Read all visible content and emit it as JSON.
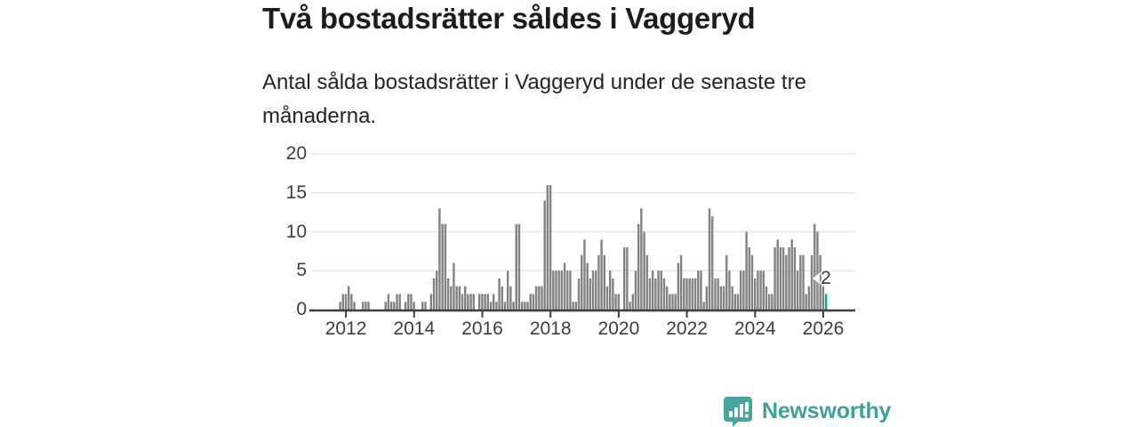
{
  "header": {
    "title": "Två bostadsrätter såldes i Vaggeryd",
    "subtitle": "Antal sålda bostadsrätter i Vaggeryd under de senaste tre månaderna."
  },
  "chart_data": {
    "type": "bar",
    "title": "Två bostadsrätter såldes i Vaggeryd",
    "ylabel": "",
    "xlabel": "",
    "x_unit": "month",
    "x_start": "2011-11",
    "x_end": "2026-02",
    "ylim": [
      0,
      20
    ],
    "grid": "horizontal",
    "y_ticks": [
      0,
      5,
      10,
      15,
      20
    ],
    "x_ticks": [
      "2012",
      "2014",
      "2016",
      "2018",
      "2020",
      "2022",
      "2024",
      "2026"
    ],
    "bar_color": "#828282",
    "highlight_color": "#12a19b",
    "highlight_last_bar": true,
    "annotation": {
      "label": "2",
      "target": "last-bar"
    },
    "values": [
      1,
      2,
      2,
      3,
      2,
      1,
      0,
      0,
      1,
      1,
      1,
      0,
      0,
      0,
      0,
      0,
      1,
      2,
      1,
      1,
      2,
      2,
      0,
      1,
      2,
      2,
      1,
      0,
      0,
      1,
      1,
      0,
      2,
      4,
      5,
      13,
      11,
      11,
      4,
      3,
      6,
      3,
      3,
      2,
      3,
      2,
      2,
      2,
      0,
      2,
      2,
      2,
      2,
      1,
      2,
      1,
      4,
      3,
      1,
      5,
      3,
      1,
      11,
      11,
      1,
      1,
      1,
      2,
      2,
      3,
      3,
      3,
      14,
      16,
      16,
      5,
      5,
      5,
      5,
      6,
      5,
      5,
      1,
      1,
      4,
      7,
      9,
      6,
      4,
      5,
      5,
      7,
      9,
      7,
      3,
      5,
      4,
      2,
      2,
      0,
      8,
      8,
      1,
      2,
      5,
      11,
      13,
      10,
      7,
      4,
      5,
      4,
      5,
      5,
      4,
      3,
      2,
      2,
      2,
      6,
      7,
      4,
      4,
      4,
      4,
      4,
      5,
      5,
      1,
      3,
      13,
      12,
      4,
      4,
      3,
      3,
      7,
      5,
      3,
      2,
      2,
      5,
      5,
      10,
      8,
      7,
      4,
      5,
      5,
      5,
      3,
      2,
      2,
      8,
      9,
      8,
      8,
      7,
      8,
      9,
      8,
      5,
      7,
      7,
      2,
      3,
      7,
      11,
      10,
      7,
      3,
      2
    ]
  },
  "footer": {
    "brand": "Newsworthy",
    "logo_icon": "newsworthy-chart-bubble-icon",
    "brand_color": "#47a49f"
  }
}
